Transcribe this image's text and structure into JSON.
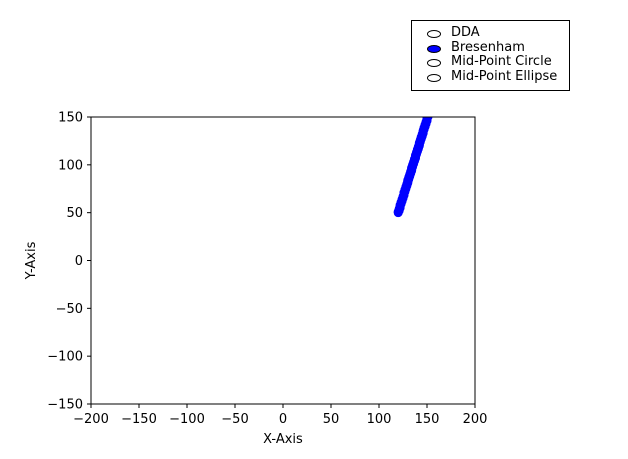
{
  "radio_panel": {
    "options": [
      {
        "label": "DDA",
        "selected": false
      },
      {
        "label": "Bresenham",
        "selected": true
      },
      {
        "label": "Mid-Point Circle",
        "selected": false
      },
      {
        "label": "Mid-Point Ellipse",
        "selected": false
      }
    ],
    "selected_color": "#0000ff"
  },
  "chart_data": {
    "type": "scatter",
    "xlabel": "X-Axis",
    "ylabel": "Y-Axis",
    "xlim": [
      -200,
      200
    ],
    "ylim": [
      -150,
      150
    ],
    "xticks": [
      "−200",
      "−150",
      "−100",
      "−50",
      "0",
      "50",
      "100",
      "150",
      "200"
    ],
    "yticks": [
      "150",
      "100",
      "50",
      "0",
      "−50",
      "−100",
      "−150"
    ],
    "grid": false,
    "series": [
      {
        "color": "#0000ff",
        "line_start": [
          120,
          50
        ],
        "line_end": [
          152,
          154
        ]
      }
    ]
  }
}
